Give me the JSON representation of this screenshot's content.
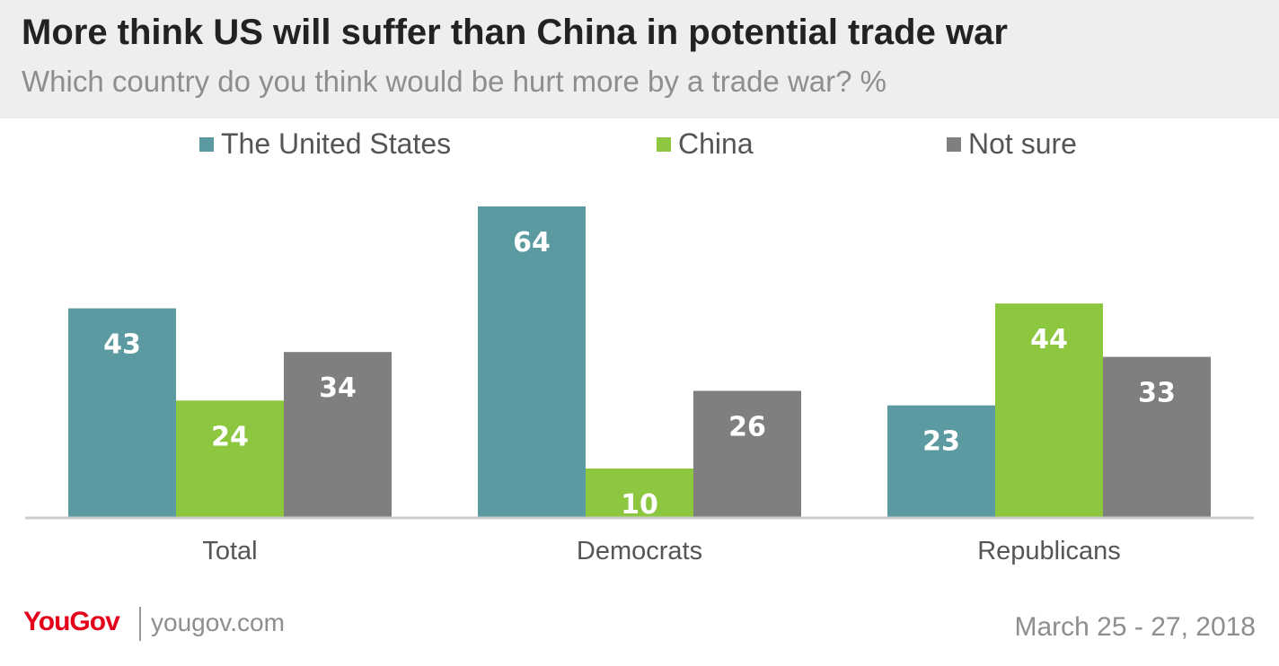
{
  "header": {
    "title": "More think US will suffer than China in potential trade war",
    "subtitle": "Which country do you think would be hurt more by a trade war? %"
  },
  "chart_data": {
    "type": "bar",
    "title": "More think US will suffer than China in potential trade war",
    "subtitle": "Which country do you think would be hurt more by a trade war? %",
    "xlabel": "",
    "ylabel": "",
    "ylim": [
      0,
      70
    ],
    "grid": false,
    "legend_position": "top",
    "categories": [
      "Total",
      "Democrats",
      "Republicans"
    ],
    "series": [
      {
        "name": "The United States",
        "color": "#5b9aa0",
        "values": [
          43,
          64,
          23
        ]
      },
      {
        "name": "China",
        "color": "#8dc63f",
        "values": [
          24,
          10,
          44
        ]
      },
      {
        "name": "Not sure",
        "color": "#7f7f7f",
        "values": [
          34,
          26,
          33
        ]
      }
    ]
  },
  "footer": {
    "logo": "YouGov",
    "url": "yougov.com",
    "date": "March 25 - 27, 2018"
  }
}
